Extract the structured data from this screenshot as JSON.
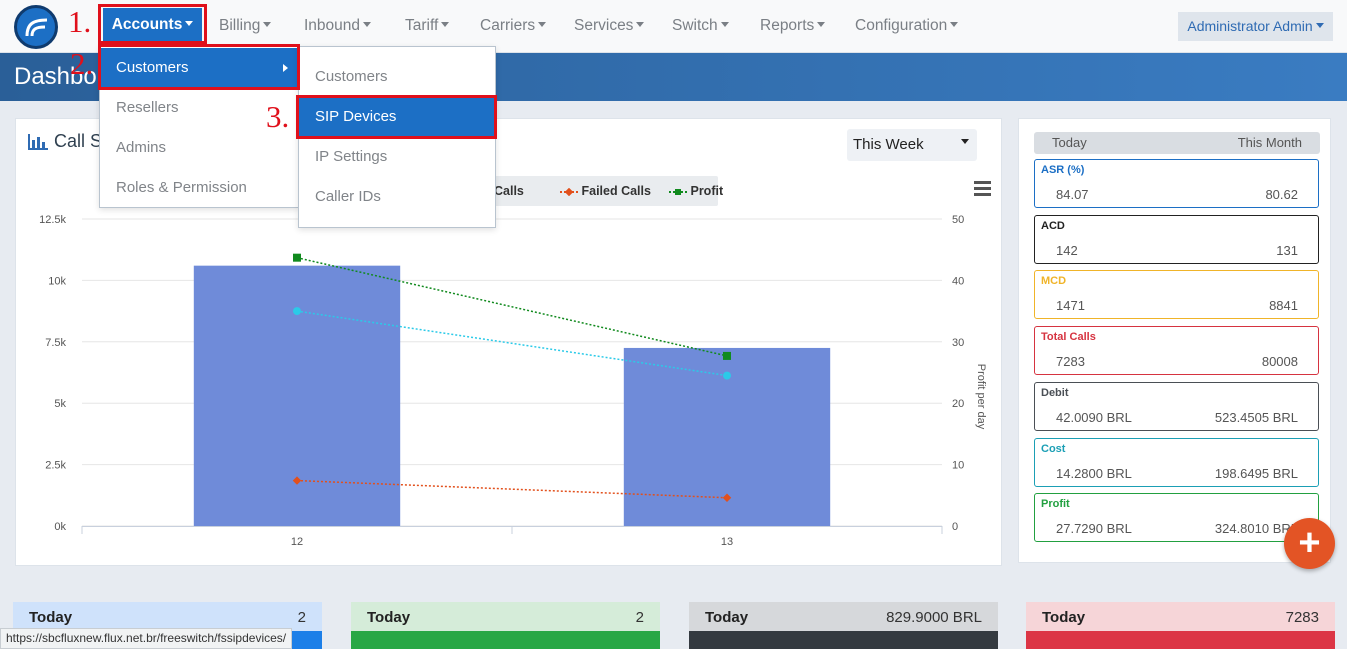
{
  "nav": {
    "items": [
      "Accounts",
      "Billing",
      "Inbound",
      "Tariff",
      "Carriers",
      "Services",
      "Switch",
      "Reports",
      "Configuration"
    ],
    "user": "Administrator Admin"
  },
  "page_title": "Dashbo",
  "accounts_menu": [
    "Customers",
    "Resellers",
    "Admins",
    "Roles & Permission"
  ],
  "customers_submenu": [
    "Customers",
    "SIP Devices",
    "IP Settings",
    "Caller IDs"
  ],
  "annotations": [
    "1.",
    "2.",
    "3."
  ],
  "chart_panel": {
    "title": "Call S",
    "period": "This Week",
    "legend": [
      "Calls",
      "Failed Calls",
      "Profit"
    ]
  },
  "chart_data": {
    "type": "bar",
    "categories": [
      "12",
      "13"
    ],
    "series": [
      {
        "name": "Calls",
        "type": "bar",
        "axis": "left",
        "values": [
          10600,
          7250
        ]
      },
      {
        "name": "",
        "type": "line",
        "axis": "right",
        "values": [
          35,
          24.5
        ]
      },
      {
        "name": "Failed Calls",
        "type": "line",
        "axis": "left",
        "values": [
          1850,
          1150
        ]
      },
      {
        "name": "Profit",
        "type": "line",
        "axis": "right",
        "values": [
          43.7,
          27.7
        ]
      }
    ],
    "y_left": {
      "ticks": [
        "0k",
        "2.5k",
        "5k",
        "7.5k",
        "10k",
        "12.5k"
      ],
      "range": [
        0,
        12500
      ]
    },
    "y_right": {
      "label": "Profit per day",
      "ticks": [
        "0",
        "10",
        "20",
        "30",
        "40",
        "50"
      ],
      "range": [
        0,
        50
      ]
    },
    "colors": {
      "bar": "#6f8bd9",
      "cyan": "#2bcae8",
      "failed": "#e2501c",
      "profit": "#118a1e"
    }
  },
  "stats": {
    "tabs": [
      "Today",
      "This Month"
    ],
    "cards": [
      {
        "label": "ASR (%)",
        "today": "84.07",
        "month": "80.62",
        "color": "#1c6fc5"
      },
      {
        "label": "ACD",
        "today": "142",
        "month": "131",
        "color": "#222222"
      },
      {
        "label": "MCD",
        "today": "1471",
        "month": "8841",
        "color": "#f0b429"
      },
      {
        "label": "Total Calls",
        "today": "7283",
        "month": "80008",
        "color": "#d63340"
      },
      {
        "label": "Debit",
        "today": "42.0090 BRL",
        "month": "523.4505 BRL",
        "color": "#4a4f55"
      },
      {
        "label": "Cost",
        "today": "14.2800 BRL",
        "month": "198.6495 BRL",
        "color": "#1b9fb5"
      },
      {
        "label": "Profit",
        "today": "27.7290 BRL",
        "month": "324.8010 BRL",
        "color": "#22a040"
      }
    ]
  },
  "bottom_cards": [
    {
      "label": "Today",
      "value": "2",
      "head": "#cfe2fb",
      "bar": "#1c7fe8"
    },
    {
      "label": "Today",
      "value": "2",
      "head": "#d5ecd9",
      "bar": "#28a745"
    },
    {
      "label": "Today",
      "value": "829.9000 BRL",
      "head": "#d6d8db",
      "bar": "#343a40"
    },
    {
      "label": "Today",
      "value": "7283",
      "head": "#f6d5d8",
      "bar": "#dc3545"
    }
  ],
  "status_url": "https://sbcfluxnew.flux.net.br/freeswitch/fssipdevices/",
  "fab_icon": "plus-icon"
}
